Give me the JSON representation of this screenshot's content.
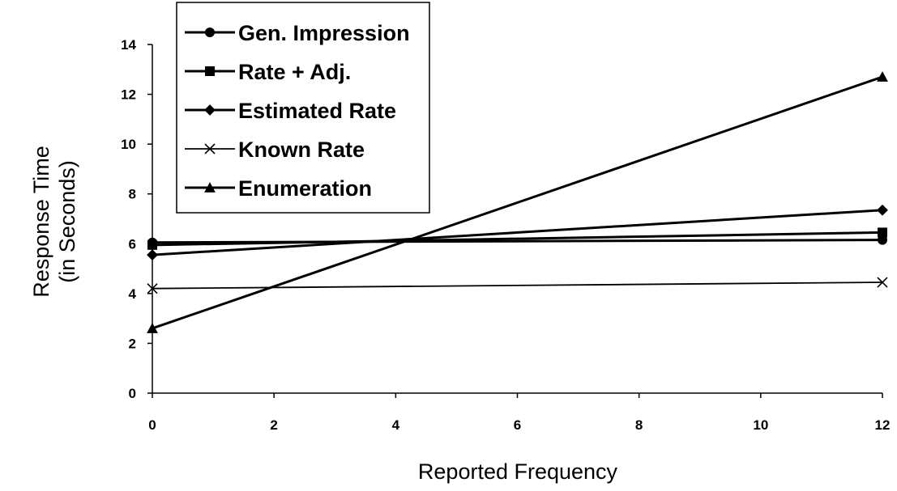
{
  "chart_data": {
    "type": "line",
    "title": "",
    "xlabel": "Reported Frequency",
    "ylabel_lines": [
      "Response Time",
      "(in Seconds)"
    ],
    "xlim": [
      0,
      12
    ],
    "ylim": [
      0,
      14
    ],
    "x_ticks": [
      0,
      2,
      4,
      6,
      8,
      10,
      12
    ],
    "y_ticks": [
      0,
      2,
      4,
      6,
      8,
      10,
      12,
      14
    ],
    "grid": false,
    "legend_position": "top-left",
    "series": [
      {
        "name": "Gen. Impression",
        "marker": "circle",
        "x": [
          0,
          12
        ],
        "y": [
          6.05,
          6.15
        ]
      },
      {
        "name": "Rate + Adj.",
        "marker": "square",
        "x": [
          0,
          12
        ],
        "y": [
          5.95,
          6.45
        ]
      },
      {
        "name": "Estimated Rate",
        "marker": "diamond",
        "x": [
          0,
          12
        ],
        "y": [
          5.55,
          7.35
        ]
      },
      {
        "name": "Known Rate",
        "marker": "x",
        "x": [
          0,
          12
        ],
        "y": [
          4.2,
          4.45
        ]
      },
      {
        "name": "Enumeration",
        "marker": "triangle",
        "x": [
          0,
          12
        ],
        "y": [
          2.6,
          12.7
        ]
      }
    ]
  }
}
